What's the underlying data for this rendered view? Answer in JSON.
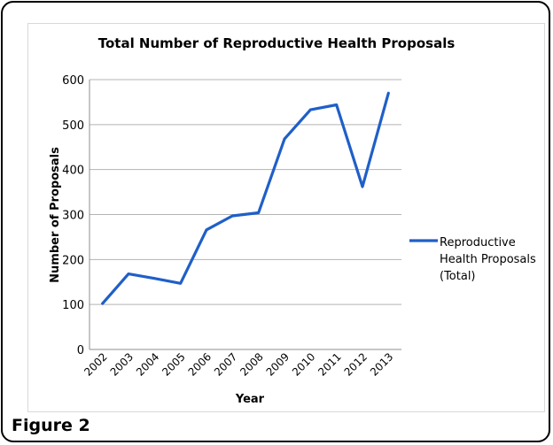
{
  "figure_caption": "Figure 2",
  "chart_data": {
    "type": "line",
    "title": "Total Number of Reproductive Health Proposals",
    "xlabel": "Year",
    "ylabel": "Number of Proposals",
    "categories": [
      "2002",
      "2003",
      "2004",
      "2005",
      "2006",
      "2007",
      "2008",
      "2009",
      "2010",
      "2011",
      "2012",
      "2013"
    ],
    "series": [
      {
        "name": "Reproductive Health Proposals (Total)",
        "values": [
          102,
          168,
          158,
          147,
          266,
          297,
          304,
          468,
          533,
          544,
          362,
          570
        ],
        "color": "#1f5fc8"
      }
    ],
    "ylim": [
      0,
      600
    ],
    "yticks": [
      "0",
      "100",
      "200",
      "300",
      "400",
      "500",
      "600"
    ],
    "grid": true,
    "legend_position": "right",
    "legend_lines": [
      "Reproductive",
      "Health Proposals",
      "(Total)"
    ]
  }
}
